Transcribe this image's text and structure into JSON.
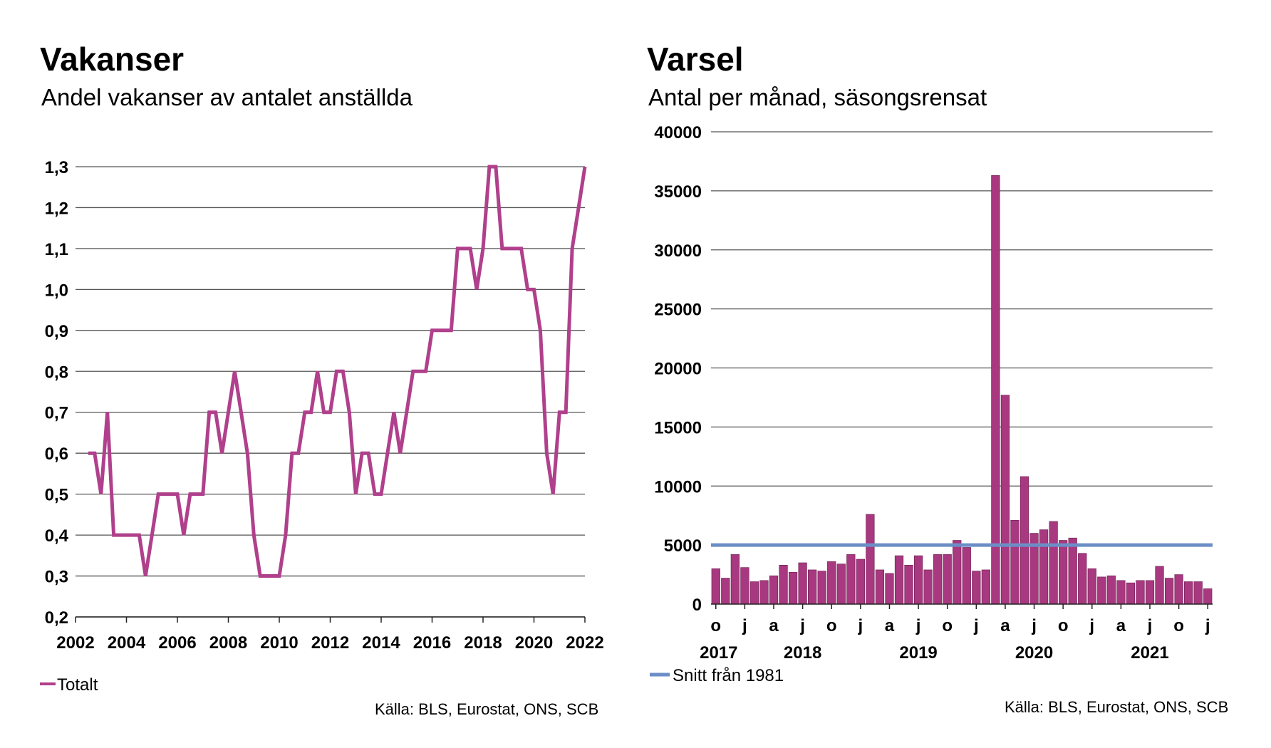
{
  "left": {
    "title": "Vakanser",
    "subtitle": "Andel vakanser av antalet anställda",
    "source": "Källa: BLS, Eurostat, ONS, SCB"
  },
  "right": {
    "title": "Varsel",
    "subtitle": "Antal per månad, säsongsrensat",
    "source": "Källa: BLS, Eurostat, ONS, SCB"
  },
  "colors": {
    "line": "#b0408c",
    "bar": "#a8387f",
    "avg": "#6b8ec6"
  },
  "chart_data": [
    {
      "type": "line",
      "title": "Vakanser",
      "subtitle": "Andel vakanser av antalet anställda",
      "ylim": [
        0.2,
        1.3
      ],
      "xlim": [
        2002,
        2022
      ],
      "y_ticks": [
        "0,2",
        "0,3",
        "0,4",
        "0,5",
        "0,6",
        "0,7",
        "0,8",
        "0,9",
        "1,0",
        "1,1",
        "1,2",
        "1,3"
      ],
      "x_ticks": [
        "2002",
        "2004",
        "2006",
        "2008",
        "2010",
        "2012",
        "2014",
        "2016",
        "2018",
        "2020",
        "2022"
      ],
      "grid": true,
      "legend_position": "bottom-left",
      "series": [
        {
          "name": "Totalt",
          "x": [
            2002.5,
            2002.75,
            2003.0,
            2003.25,
            2003.5,
            2003.75,
            2004.0,
            2004.25,
            2004.5,
            2004.75,
            2005.0,
            2005.25,
            2005.5,
            2005.75,
            2006.0,
            2006.25,
            2006.5,
            2006.75,
            2007.0,
            2007.25,
            2007.5,
            2007.75,
            2008.0,
            2008.25,
            2008.5,
            2008.75,
            2009.0,
            2009.25,
            2009.5,
            2009.75,
            2010.0,
            2010.25,
            2010.5,
            2010.75,
            2011.0,
            2011.25,
            2011.5,
            2011.75,
            2012.0,
            2012.25,
            2012.5,
            2012.75,
            2013.0,
            2013.25,
            2013.5,
            2013.75,
            2014.0,
            2014.25,
            2014.5,
            2014.75,
            2015.0,
            2015.25,
            2015.5,
            2015.75,
            2016.0,
            2016.25,
            2016.5,
            2016.75,
            2017.0,
            2017.25,
            2017.5,
            2017.75,
            2018.0,
            2018.25,
            2018.5,
            2018.75,
            2019.0,
            2019.25,
            2019.5,
            2019.75,
            2020.0,
            2020.25,
            2020.5,
            2020.75,
            2021.0,
            2021.25,
            2021.5,
            2021.75,
            2022.0
          ],
          "values": [
            0.6,
            0.6,
            0.5,
            0.7,
            0.4,
            0.4,
            0.4,
            0.4,
            0.4,
            0.3,
            0.4,
            0.5,
            0.5,
            0.5,
            0.5,
            0.4,
            0.5,
            0.5,
            0.5,
            0.7,
            0.7,
            0.6,
            0.7,
            0.8,
            0.7,
            0.6,
            0.4,
            0.3,
            0.3,
            0.3,
            0.3,
            0.4,
            0.6,
            0.6,
            0.7,
            0.7,
            0.8,
            0.7,
            0.7,
            0.8,
            0.8,
            0.7,
            0.5,
            0.6,
            0.6,
            0.5,
            0.5,
            0.6,
            0.7,
            0.6,
            0.7,
            0.8,
            0.8,
            0.8,
            0.9,
            0.9,
            0.9,
            0.9,
            1.1,
            1.1,
            1.1,
            1.0,
            1.1,
            1.3,
            1.3,
            1.1,
            1.1,
            1.1,
            1.1,
            1.0,
            1.0,
            0.9,
            0.6,
            0.5,
            0.7,
            0.7,
            1.1,
            1.2,
            1.3
          ]
        }
      ]
    },
    {
      "type": "bar",
      "title": "Varsel",
      "subtitle": "Antal per månad, säsongsrensat",
      "ylim": [
        0,
        40000
      ],
      "y_ticks": [
        "0",
        "5000",
        "10000",
        "15000",
        "20000",
        "25000",
        "30000",
        "35000",
        "40000"
      ],
      "grid": true,
      "legend_position": "bottom-left",
      "x_month_ticks": [
        {
          "label": "o",
          "index": 0
        },
        {
          "label": "j",
          "index": 3
        },
        {
          "label": "a",
          "index": 6
        },
        {
          "label": "j",
          "index": 9
        },
        {
          "label": "o",
          "index": 12
        },
        {
          "label": "j",
          "index": 15
        },
        {
          "label": "a",
          "index": 18
        },
        {
          "label": "j",
          "index": 21
        },
        {
          "label": "o",
          "index": 24
        },
        {
          "label": "j",
          "index": 27
        },
        {
          "label": "a",
          "index": 30
        },
        {
          "label": "j",
          "index": 33
        },
        {
          "label": "o",
          "index": 36
        },
        {
          "label": "j",
          "index": 39
        },
        {
          "label": "a",
          "index": 42
        },
        {
          "label": "j",
          "index": 45
        },
        {
          "label": "o",
          "index": 48
        },
        {
          "label": "j",
          "index": 51
        }
      ],
      "x_year_labels": [
        {
          "label": "2017",
          "index": 0.3
        },
        {
          "label": "2018",
          "index": 9
        },
        {
          "label": "2019",
          "index": 21
        },
        {
          "label": "2020",
          "index": 33
        },
        {
          "label": "2021",
          "index": 45
        }
      ],
      "values": [
        3000,
        2200,
        4200,
        3100,
        1900,
        2000,
        2400,
        3300,
        2700,
        3500,
        2900,
        2800,
        3600,
        3400,
        4200,
        3800,
        7600,
        2900,
        2600,
        4100,
        3300,
        4100,
        2900,
        4200,
        4200,
        5400,
        4800,
        2800,
        2900,
        36300,
        17700,
        7100,
        10800,
        6000,
        6300,
        7000,
        5400,
        5600,
        4300,
        3000,
        2300,
        2400,
        2000,
        1800,
        2000,
        2000,
        3200,
        2200,
        2500,
        1900,
        1900,
        1300
      ],
      "reference_line": {
        "name": "Snitt från 1981",
        "value": 5000
      }
    }
  ]
}
